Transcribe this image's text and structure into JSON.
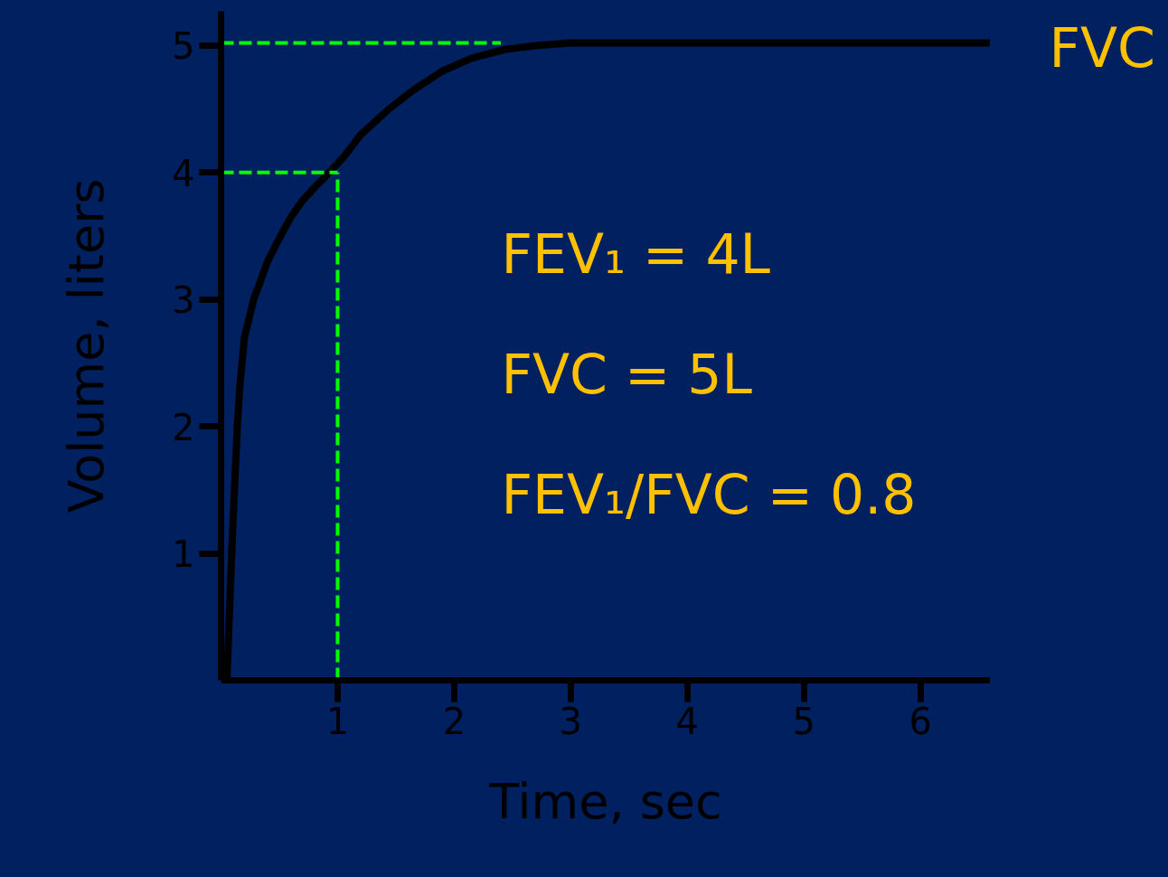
{
  "chart_data": {
    "type": "line",
    "xlabel": "Time, sec",
    "ylabel": "Volume, liters",
    "xlim": [
      0,
      6.6
    ],
    "ylim": [
      0,
      5.27
    ],
    "xticks": [
      1,
      2,
      3,
      4,
      5,
      6
    ],
    "yticks": [
      1,
      2,
      3,
      4,
      5
    ],
    "grid": false,
    "series": [
      {
        "color": "#000000",
        "line_style": "solid",
        "x": [
          0.05,
          0.1,
          0.14,
          0.16,
          0.2,
          0.28,
          0.4,
          0.51,
          0.6,
          0.7,
          0.8,
          0.93,
          1.05,
          1.2,
          1.44,
          1.65,
          1.9,
          2.15,
          2.44,
          2.7,
          3.0,
          4.0,
          5.0,
          6.0,
          6.6
        ],
        "values": [
          0,
          1.2,
          2.0,
          2.3,
          2.7,
          3.0,
          3.3,
          3.5,
          3.65,
          3.78,
          3.88,
          4.0,
          4.12,
          4.3,
          4.5,
          4.65,
          4.8,
          4.9,
          4.97,
          5.0,
          5.02,
          5.02,
          5.02,
          5.02,
          5.02
        ]
      },
      {
        "color": "#00ff00",
        "line_style": "dashed",
        "x": [
          0,
          2.4
        ],
        "values": [
          5.02,
          5.02
        ]
      },
      {
        "color": "#00ff00",
        "line_style": "dashed",
        "x": [
          0,
          1
        ],
        "values": [
          4.0,
          4.0
        ]
      },
      {
        "color": "#00ff00",
        "line_style": "dashed",
        "x": [
          1,
          1
        ],
        "values": [
          0,
          4.0
        ]
      }
    ],
    "annotations": [
      "FVC",
      "FEV₁ = 4L",
      "FVC  = 5L",
      "FEV₁/FVC = 0.8"
    ]
  }
}
